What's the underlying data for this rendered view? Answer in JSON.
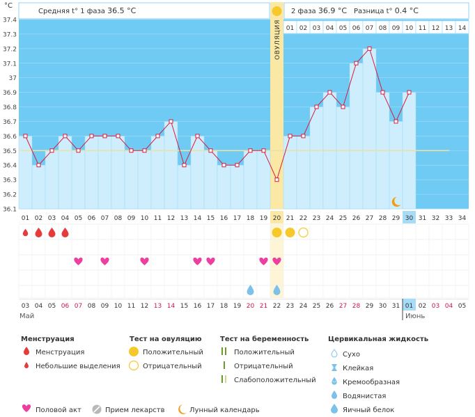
{
  "chart_data": {
    "type": "bar",
    "unit_label": "°C",
    "ylim": [
      36.1,
      37.4
    ],
    "yticks": [
      "37.4",
      "37.3",
      "37.2",
      "37.1",
      "37",
      "36.9",
      "36.8",
      "36.7",
      "36.6",
      "36.5",
      "36.4",
      "36.3",
      "36.2",
      "36.1"
    ],
    "cycle_days": [
      "01",
      "02",
      "03",
      "04",
      "05",
      "06",
      "07",
      "08",
      "09",
      "10",
      "11",
      "12",
      "13",
      "14",
      "15",
      "16",
      "17",
      "18",
      "19",
      "20",
      "21",
      "22",
      "23",
      "24",
      "25",
      "26",
      "27",
      "28",
      "29",
      "30",
      "31",
      "32",
      "33",
      "34"
    ],
    "post_ovulation_days": [
      "01",
      "02",
      "03",
      "04",
      "05",
      "06",
      "07",
      "08",
      "09",
      "10",
      "11",
      "12",
      "13",
      "14"
    ],
    "temperatures": [
      36.6,
      36.4,
      36.5,
      36.6,
      36.5,
      36.6,
      36.6,
      36.6,
      36.5,
      36.5,
      36.6,
      36.7,
      36.4,
      36.6,
      36.5,
      36.4,
      36.4,
      36.5,
      36.5,
      36.3,
      36.6,
      36.6,
      36.8,
      36.9,
      36.8,
      37.1,
      37.2,
      36.9,
      36.7,
      36.9
    ],
    "ovulation_day": 20,
    "ovulation_label": "ОВУЛЯЦИЯ",
    "coverline": 36.5,
    "today_day": 30,
    "phase1": {
      "label": "Средняя t° 1 фаза",
      "value": "36.5 °C"
    },
    "phase2": {
      "label": "2 фаза",
      "value": "36.9 °C"
    },
    "difference": {
      "label": "Разница t°",
      "value": "0.4 °C"
    },
    "calendar_dates": [
      {
        "d": "03",
        "red": false
      },
      {
        "d": "04",
        "red": false
      },
      {
        "d": "05",
        "red": false
      },
      {
        "d": "06",
        "red": true
      },
      {
        "d": "07",
        "red": true
      },
      {
        "d": "08",
        "red": false
      },
      {
        "d": "09",
        "red": false
      },
      {
        "d": "10",
        "red": false
      },
      {
        "d": "11",
        "red": false
      },
      {
        "d": "12",
        "red": false
      },
      {
        "d": "13",
        "red": true
      },
      {
        "d": "14",
        "red": true
      },
      {
        "d": "15",
        "red": false
      },
      {
        "d": "16",
        "red": false
      },
      {
        "d": "17",
        "red": false
      },
      {
        "d": "18",
        "red": false
      },
      {
        "d": "19",
        "red": false
      },
      {
        "d": "20",
        "red": true
      },
      {
        "d": "21",
        "red": true
      },
      {
        "d": "22",
        "red": false
      },
      {
        "d": "23",
        "red": false
      },
      {
        "d": "24",
        "red": false
      },
      {
        "d": "25",
        "red": false
      },
      {
        "d": "26",
        "red": false
      },
      {
        "d": "27",
        "red": true
      },
      {
        "d": "28",
        "red": true
      },
      {
        "d": "29",
        "red": false
      },
      {
        "d": "30",
        "red": false
      },
      {
        "d": "31",
        "red": false
      },
      {
        "d": "01",
        "red": false
      },
      {
        "d": "02",
        "red": false
      },
      {
        "d": "03",
        "red": true
      },
      {
        "d": "04",
        "red": true
      },
      {
        "d": "05",
        "red": false
      }
    ],
    "month_start": "Май",
    "month_end": "Июнь",
    "events": {
      "menstruation": [
        {
          "day": 1,
          "size": "small"
        },
        {
          "day": 2,
          "size": "large"
        },
        {
          "day": 3,
          "size": "large"
        },
        {
          "day": 4,
          "size": "large"
        }
      ],
      "ovulation_test": [
        {
          "day": 20,
          "result": "positive"
        },
        {
          "day": 21,
          "result": "positive"
        },
        {
          "day": 22,
          "result": "negative"
        }
      ],
      "intercourse": [
        5,
        7,
        10,
        14,
        15,
        19,
        20
      ],
      "cervical_fluid": [
        {
          "day": 18,
          "kind": "watery"
        },
        {
          "day": 20,
          "kind": "watery"
        }
      ],
      "moon_day": 29
    }
  },
  "legend": {
    "menstruation": {
      "title": "Менструация",
      "items": [
        "Менструация",
        "Небольшие выделения"
      ]
    },
    "ovulation_test": {
      "title": "Тест на овуляцию",
      "items": [
        "Положительный",
        "Отрицательный"
      ]
    },
    "pregnancy_test": {
      "title": "Тест на беременность",
      "items": [
        "Положительный",
        "Отрицательный",
        "Слабоположительный"
      ]
    },
    "cervical_fluid": {
      "title": "Цервикальная жидкость",
      "items": [
        "Сухо",
        "Клейкая",
        "Кремообразная",
        "Водянистая",
        "Яичный белок"
      ]
    },
    "bottom": [
      "Половой акт",
      "Прием лекарств",
      "Лунный календарь"
    ]
  },
  "colors": {
    "sky": "#6fcbf3",
    "bar": "#cfeefd",
    "bar_stroke": "#9bd8f5",
    "ovulation": "#fbe8a4",
    "line": "#d81b3c",
    "today": "#a6dcf6",
    "heart": "#ec3fa0",
    "drop": "#e53b3b",
    "circle": "#f7c82c",
    "fluid": "#7cc1ea",
    "moon": "#f29b17",
    "red_text": "#c8174a"
  }
}
